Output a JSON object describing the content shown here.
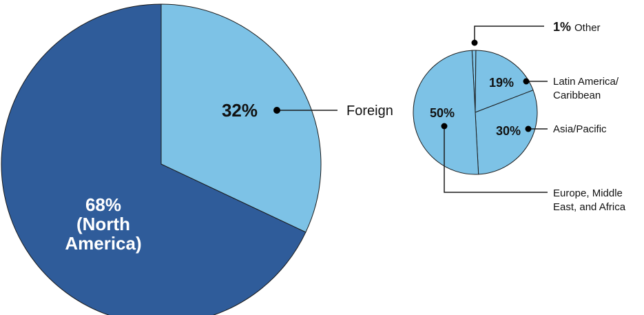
{
  "colors": {
    "dark_blue": "#2f5c9a",
    "light_blue": "#7dc2e6",
    "line": "#1a1a1a",
    "dot": "#000000",
    "white_text": "#ffffff",
    "black_text": "#111111"
  },
  "chart_data": [
    {
      "type": "pie",
      "slices": [
        {
          "key": "north_america",
          "value": 68,
          "label_lines": [
            "68%",
            "(North",
            "America)"
          ]
        },
        {
          "key": "foreign",
          "value": 32,
          "label_lines": [
            "32%"
          ]
        }
      ],
      "callout": "Foreign"
    },
    {
      "type": "pie",
      "slices": [
        {
          "key": "other",
          "value": 1,
          "pct": "1%",
          "name": "Other"
        },
        {
          "key": "latam",
          "value": 19,
          "pct": "19%",
          "name_lines": [
            "Latin America/",
            "Caribbean"
          ]
        },
        {
          "key": "apac",
          "value": 30,
          "pct": "30%",
          "name": "Asia/Pacific"
        },
        {
          "key": "emea",
          "value": 50,
          "pct": "50%",
          "name_lines": [
            "Europe, Middle",
            "East, and Africa"
          ]
        }
      ]
    }
  ]
}
